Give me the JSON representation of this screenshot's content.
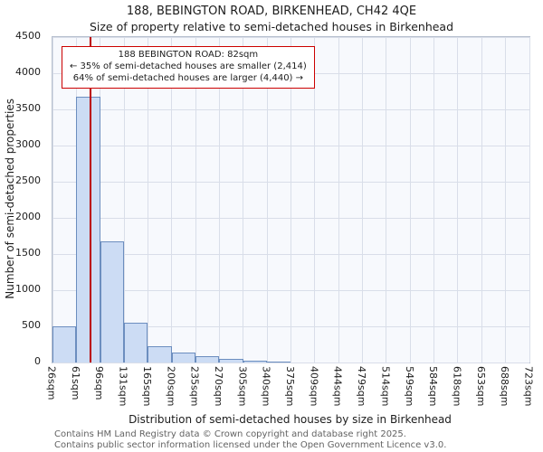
{
  "title": "188, BEBINGTON ROAD, BIRKENHEAD, CH42 4QE",
  "subtitle": "Size of property relative to semi-detached houses in Birkenhead",
  "chart_data": {
    "type": "bar",
    "title": "188, BEBINGTON ROAD, BIRKENHEAD, CH42 4QE",
    "subtitle": "Size of property relative to semi-detached houses in Birkenhead",
    "xlabel": "Distribution of semi-detached houses by size in Birkenhead",
    "ylabel": "Number of semi-detached properties",
    "categories": [
      "26sqm",
      "61sqm",
      "96sqm",
      "131sqm",
      "165sqm",
      "200sqm",
      "235sqm",
      "270sqm",
      "305sqm",
      "340sqm",
      "375sqm",
      "409sqm",
      "444sqm",
      "479sqm",
      "514sqm",
      "549sqm",
      "584sqm",
      "618sqm",
      "653sqm",
      "688sqm",
      "723sqm"
    ],
    "bin_edges_sqm": [
      26,
      61,
      96,
      131,
      165,
      200,
      235,
      270,
      305,
      340,
      375,
      409,
      444,
      479,
      514,
      549,
      584,
      618,
      653,
      688,
      723
    ],
    "values": [
      500,
      3670,
      1670,
      550,
      220,
      140,
      90,
      50,
      25,
      10,
      0,
      0,
      0,
      0,
      0,
      0,
      0,
      0,
      0,
      0
    ],
    "ylim": [
      0,
      4500
    ],
    "ytick_step": 500,
    "grid": true,
    "x_range_sqm": [
      26,
      723
    ],
    "marker": {
      "value_sqm": 82
    },
    "annotation": {
      "line1": "188 BEBINGTON ROAD: 82sqm",
      "line2": "← 35% of semi-detached houses are smaller (2,414)",
      "line3": "64% of semi-detached houses are larger (4,440) →"
    }
  },
  "footer": {
    "line1": "Contains HM Land Registry data © Crown copyright and database right 2025.",
    "line2": "Contains public sector information licensed under the Open Government Licence v3.0."
  },
  "colors": {
    "bar_fill": "#ccdcf4",
    "bar_edge": "#6c8ebf",
    "grid": "#d9dee9",
    "plot_bg": "#f7f9fd",
    "plot_border": "#b6bfce",
    "marker": "#bb0000",
    "annotation_border": "#cc0000",
    "text": "#1c1c1c",
    "footer_text": "#636363"
  }
}
